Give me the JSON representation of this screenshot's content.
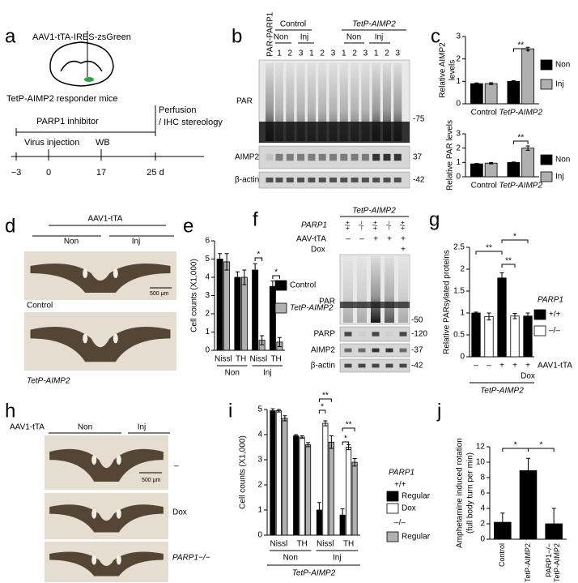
{
  "panels": {
    "a": {
      "label": "a",
      "virus": "AAV1-tTA-IRES-zsGreen",
      "mice": "TetP-AIMP2 responder mice",
      "inhibitor": "PARP1 inhibitor",
      "perfusion": [
        "Perfusion",
        "/ IHC stereology"
      ],
      "events": [
        "Virus injection",
        "WB"
      ],
      "timeline": [
        "−3",
        "0",
        "17",
        "25 d"
      ]
    },
    "b": {
      "label": "b",
      "probe": "PAR-PARP1",
      "groups": [
        "Control",
        "TetP-AIMP2"
      ],
      "conditions": [
        "Non",
        "Inj",
        "Non",
        "Inj"
      ],
      "lanes": [
        "1",
        "2",
        "3",
        "1",
        "2",
        "3",
        "1",
        "2",
        "3",
        "1",
        "2",
        "3"
      ],
      "blots": [
        "PAR",
        "AIMP2",
        "β-actin"
      ],
      "markers": [
        "-75",
        "37",
        "-42"
      ]
    },
    "c": {
      "label": "c"
    },
    "d": {
      "label": "d",
      "virus": "AAV1-tTA",
      "conditions": [
        "Non",
        "Inj"
      ],
      "rows": [
        "Control",
        "TetP-AIMP2"
      ],
      "scale": "500 μm"
    },
    "e": {
      "label": "e"
    },
    "f": {
      "label": "f",
      "group": "TetP-AIMP2",
      "rows": [
        "PARP1",
        "AAV-tTA",
        "Dox"
      ],
      "lanes": [
        [
          "+/+",
          "–/–",
          "+/+",
          "–/–",
          "+/+"
        ],
        [
          "–",
          "–",
          "+",
          "+",
          "+"
        ],
        [
          "+"
        ]
      ],
      "blots": [
        "PAR",
        "PARP",
        "AIMP2",
        "β-actin"
      ],
      "markers": [
        "-50",
        "-120",
        "-37",
        "-42"
      ]
    },
    "g": {
      "label": "g"
    },
    "h": {
      "label": "h",
      "virus": "AAV1-tTA",
      "conditions": [
        "Non",
        "Inj"
      ],
      "rows": [
        "–",
        "Dox",
        "PARP1−/−"
      ],
      "scale": "500 μm"
    },
    "i": {
      "label": "i"
    },
    "j": {
      "label": "j"
    }
  },
  "chart_data": [
    {
      "type": "bar",
      "ylabel": [
        "Relative AIMP2",
        "levels"
      ],
      "categories": [
        "Control",
        "TetP-AIMP2"
      ],
      "series": [
        {
          "name": "Non",
          "color": "#000000",
          "values": [
            0.9,
            1.0
          ],
          "errors": [
            0.03,
            0.03
          ]
        },
        {
          "name": "Inj",
          "color": "#b0b0b0",
          "values": [
            0.9,
            2.45
          ],
          "errors": [
            0.04,
            0.07
          ]
        }
      ],
      "ylim": [
        0,
        3
      ],
      "yticks": [
        0,
        1,
        2,
        3
      ],
      "annotations": [
        "**"
      ]
    },
    {
      "type": "bar",
      "ylabel": [
        "Relative PAR levels"
      ],
      "categories": [
        "Control",
        "TetP-AIMP2"
      ],
      "series": [
        {
          "name": "Non",
          "color": "#000000",
          "values": [
            0.9,
            1.0
          ],
          "errors": [
            0.03,
            0.03
          ]
        },
        {
          "name": "Inj",
          "color": "#b0b0b0",
          "values": [
            0.95,
            2.0
          ],
          "errors": [
            0.05,
            0.15
          ]
        }
      ],
      "ylim": [
        0,
        3
      ],
      "yticks": [
        0,
        1,
        2,
        3
      ],
      "annotations": [
        "**"
      ]
    },
    {
      "type": "bar",
      "ylabel": [
        "Cell counts (X1,000)"
      ],
      "categories": [
        "Nissl",
        "TH",
        "Nissl",
        "TH"
      ],
      "groups": [
        "Non",
        "Inj"
      ],
      "series": [
        {
          "name": "Control",
          "color": "#000000",
          "values": [
            5.0,
            4.0,
            4.4,
            3.5
          ],
          "errors": [
            0.3,
            0.3,
            0.35,
            0.3
          ]
        },
        {
          "name": "TetP-AIMP2",
          "color": "#b0b0b0",
          "values": [
            4.85,
            4.0,
            0.55,
            0.45
          ],
          "errors": [
            0.45,
            0.4,
            0.25,
            0.25
          ]
        }
      ],
      "ylim": [
        0,
        6
      ],
      "yticks": [
        0,
        1,
        2,
        3,
        4,
        5,
        6
      ],
      "annotations": [
        "*",
        "*"
      ]
    },
    {
      "type": "bar",
      "ylabel": [
        "Relative PARsylated proteins"
      ],
      "categories": [
        "–",
        "–",
        "+",
        "+",
        "+"
      ],
      "category_axis_label": "AAV1-tTA",
      "dox_label": "Dox",
      "group_label": "TetP-AIMP2",
      "values": [
        1.0,
        0.92,
        1.8,
        0.93,
        0.93
      ],
      "errors": [
        0.02,
        0.08,
        0.12,
        0.06,
        0.07
      ],
      "colors": [
        "#000000",
        "#ffffff",
        "#000000",
        "#ffffff",
        "#000000"
      ],
      "legend_title": "PARP1",
      "legend": [
        {
          "name": "+/+",
          "color": "#000000"
        },
        {
          "name": "–/–",
          "color": "#ffffff"
        }
      ],
      "ylim": [
        0,
        2.5
      ],
      "yticks": [
        0,
        0.5,
        1,
        1.5,
        2,
        2.5
      ],
      "annotations": [
        "**",
        "**",
        "*"
      ]
    },
    {
      "type": "bar",
      "ylabel": [
        "Cell counts (X1,000)"
      ],
      "categories": [
        "Nissl",
        "TH",
        "Nissl",
        "TH"
      ],
      "groups": [
        "Non",
        "Inj"
      ],
      "group_label": "TetP-AIMP2",
      "legend_title": "PARP1",
      "legend_groups": [
        "+/+",
        "–/–"
      ],
      "series": [
        {
          "name": "Regular",
          "color": "#000000",
          "values": [
            4.95,
            3.95,
            1.0,
            0.8
          ],
          "errors": [
            0.08,
            0.05,
            0.3,
            0.25
          ]
        },
        {
          "name": "Dox",
          "color": "#ffffff",
          "values": [
            4.95,
            3.9,
            4.45,
            3.5
          ],
          "errors": [
            0.05,
            0.05,
            0.1,
            0.1
          ]
        },
        {
          "name": "Regular",
          "color": "#b0b0b0",
          "values": [
            4.65,
            3.6,
            3.7,
            2.9
          ],
          "errors": [
            0.1,
            0.08,
            0.25,
            0.15
          ]
        }
      ],
      "ylim": [
        0,
        5
      ],
      "yticks": [
        0,
        1,
        2,
        3,
        4,
        5
      ],
      "annotations": [
        "**",
        "*",
        "**",
        "*"
      ]
    },
    {
      "type": "bar",
      "ylabel": [
        "Amphetamine induced rotation",
        "(full body turn per min)"
      ],
      "categories": [
        "Control",
        "TetP-AIMP2",
        "PARP1−/− TetP-AIMP2"
      ],
      "values": [
        2.2,
        8.9,
        2.0
      ],
      "errors": [
        1.2,
        1.6,
        2.0
      ],
      "color": "#000000",
      "ylim": [
        0,
        12
      ],
      "yticks": [
        0,
        2,
        4,
        6,
        8,
        10,
        12
      ],
      "annotations": [
        "*",
        "*"
      ]
    }
  ]
}
